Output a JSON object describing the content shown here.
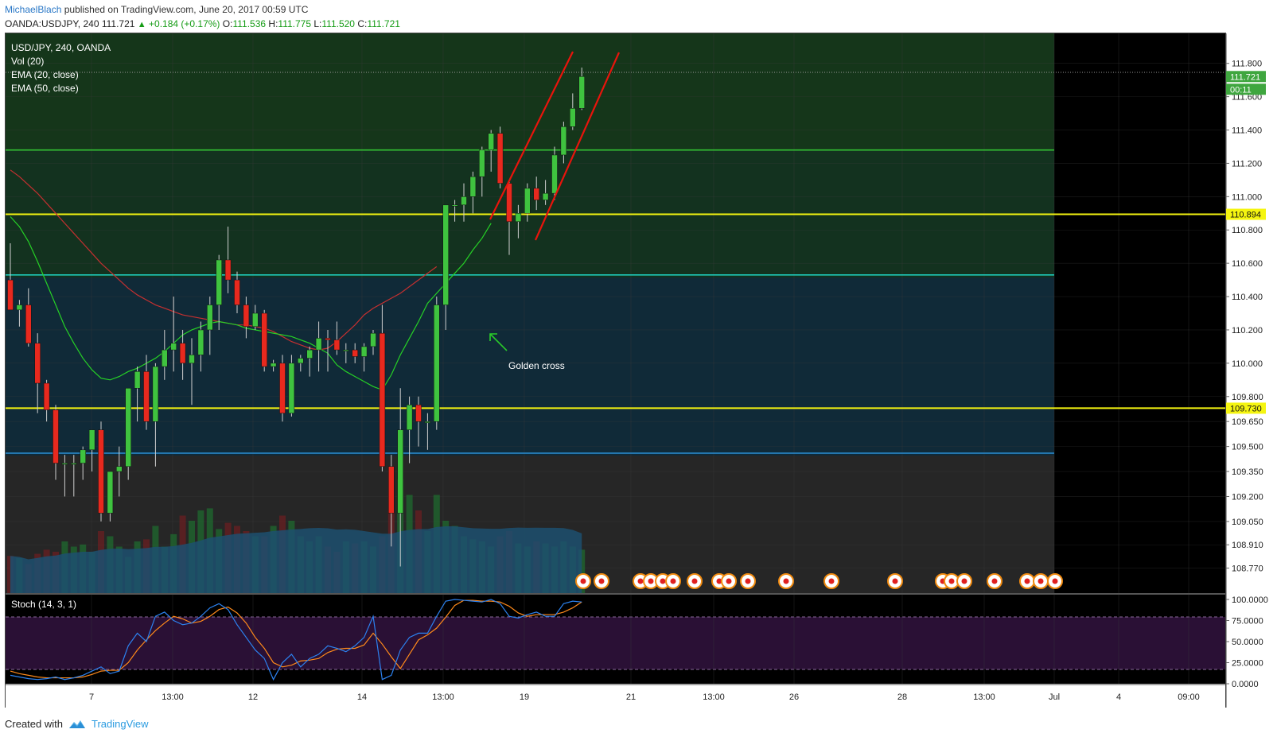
{
  "header": {
    "author": "MichaelBlach",
    "published_text": "published on TradingView.com, June 20, 2017 00:59 UTC",
    "symbol": "OANDA:USDJPY, 240",
    "last": "111.721",
    "change": "+0.184 (+0.17%)",
    "open_label": "O:",
    "open": "111.536",
    "high_label": "H:",
    "high": "111.775",
    "low_label": "L:",
    "low": "111.520",
    "close_label": "C:",
    "close": "111.721"
  },
  "legend": {
    "title": "USD/JPY, 240, OANDA",
    "vol": "Vol (20)",
    "ema20": "EMA (20, close)",
    "ema50": "EMA (50, close)"
  },
  "annotation": {
    "text": "Golden cross"
  },
  "footer": {
    "created_with": "Created with",
    "brand": "TradingView"
  },
  "colors": {
    "up": "#3fc33f",
    "down": "#e8291e",
    "ema20": "#26d126",
    "ema50": "#c53030",
    "resistance": "#34c234",
    "yellow_level": "#f5f510",
    "teal_level": "#1ec9b9",
    "blue_level": "#2a8fd6",
    "channel": "#e8140c",
    "stoch_k": "#2c82f0",
    "stoch_d": "#ff8a1a"
  },
  "chart_data": {
    "type": "candlestick",
    "title": "USD/JPY, 240, OANDA",
    "ylim": [
      108.62,
      111.98
    ],
    "y_ticks": [
      "111.800",
      "111.600",
      "111.400",
      "111.200",
      "111.000",
      "110.800",
      "110.600",
      "110.400",
      "110.200",
      "110.000",
      "109.800",
      "109.650",
      "109.500",
      "109.350",
      "109.200",
      "109.050",
      "108.910",
      "108.770"
    ],
    "x_ticks": [
      "7",
      "13:00",
      "12",
      "14",
      "13:00",
      "19",
      "21",
      "13:00",
      "26",
      "28",
      "13:00",
      "Jul",
      "4",
      "09:00"
    ],
    "price_labels": {
      "last": "111.721",
      "countdown": "00:11",
      "yellow_upper": "110.894",
      "yellow_lower": "109.730"
    },
    "horizontal_levels": {
      "green": 111.28,
      "yellow_upper": 110.894,
      "teal": 110.53,
      "yellow_lower": 109.73,
      "blue": 109.46
    },
    "candles": [
      [
        110.5,
        110.72,
        110.35,
        110.32
      ],
      [
        110.32,
        110.38,
        110.22,
        110.35
      ],
      [
        110.35,
        110.45,
        110.1,
        110.12
      ],
      [
        110.12,
        110.18,
        109.7,
        109.88
      ],
      [
        109.88,
        109.9,
        109.65,
        109.72
      ],
      [
        109.72,
        109.75,
        109.3,
        109.4
      ],
      [
        109.4,
        109.45,
        109.2,
        109.4
      ],
      [
        109.4,
        109.45,
        109.2,
        109.4
      ],
      [
        109.4,
        109.5,
        109.3,
        109.48
      ],
      [
        109.48,
        109.6,
        109.35,
        109.6
      ],
      [
        109.6,
        109.65,
        109.05,
        109.1
      ],
      [
        109.1,
        109.35,
        109.05,
        109.35
      ],
      [
        109.35,
        109.5,
        109.2,
        109.38
      ],
      [
        109.38,
        109.85,
        109.3,
        109.85
      ],
      [
        109.85,
        109.98,
        109.65,
        109.95
      ],
      [
        109.95,
        110.05,
        109.6,
        109.65
      ],
      [
        109.65,
        110.0,
        109.38,
        109.98
      ],
      [
        109.98,
        110.2,
        109.9,
        110.08
      ],
      [
        110.08,
        110.4,
        109.95,
        110.12
      ],
      [
        110.12,
        110.2,
        109.9,
        110.0
      ],
      [
        110.0,
        110.15,
        109.75,
        110.05
      ],
      [
        110.05,
        110.25,
        109.95,
        110.2
      ],
      [
        110.2,
        110.4,
        110.05,
        110.35
      ],
      [
        110.35,
        110.65,
        110.2,
        110.62
      ],
      [
        110.62,
        110.82,
        110.42,
        110.5
      ],
      [
        110.5,
        110.55,
        110.3,
        110.35
      ],
      [
        110.35,
        110.4,
        110.15,
        110.22
      ],
      [
        110.22,
        110.35,
        110.2,
        110.3
      ],
      [
        110.3,
        110.32,
        109.95,
        109.98
      ],
      [
        109.98,
        110.02,
        109.95,
        110.0
      ],
      [
        110.0,
        110.05,
        109.65,
        109.7
      ],
      [
        109.7,
        110.05,
        109.68,
        110.0
      ],
      [
        110.0,
        110.05,
        109.95,
        110.03
      ],
      [
        110.03,
        110.1,
        109.92,
        110.08
      ],
      [
        110.08,
        110.25,
        109.95,
        110.15
      ],
      [
        110.15,
        110.2,
        109.95,
        110.14
      ],
      [
        110.14,
        110.25,
        110.05,
        110.08
      ],
      [
        110.08,
        110.12,
        110.0,
        110.08
      ],
      [
        110.08,
        110.12,
        110.0,
        110.04
      ],
      [
        110.04,
        110.12,
        109.95,
        110.1
      ],
      [
        110.1,
        110.2,
        110.05,
        110.18
      ],
      [
        110.18,
        110.35,
        109.35,
        109.38
      ],
      [
        109.38,
        109.45,
        108.9,
        109.1
      ],
      [
        109.1,
        109.85,
        108.78,
        109.6
      ],
      [
        109.6,
        109.8,
        109.4,
        109.75
      ],
      [
        109.75,
        109.8,
        109.5,
        109.65
      ],
      [
        109.65,
        109.7,
        109.48,
        109.65
      ],
      [
        109.65,
        110.4,
        109.6,
        110.35
      ],
      [
        110.35,
        110.95,
        110.2,
        110.95
      ],
      [
        110.95,
        110.98,
        110.85,
        110.95
      ],
      [
        110.95,
        111.08,
        110.85,
        111.0
      ],
      [
        111.0,
        111.15,
        110.9,
        111.12
      ],
      [
        111.12,
        111.3,
        111.0,
        111.28
      ],
      [
        111.28,
        111.4,
        111.15,
        111.38
      ],
      [
        111.38,
        111.42,
        111.05,
        111.08
      ],
      [
        111.08,
        111.1,
        110.65,
        110.85
      ],
      [
        110.85,
        110.95,
        110.75,
        110.9
      ],
      [
        110.9,
        111.08,
        110.85,
        111.05
      ],
      [
        111.05,
        111.12,
        110.92,
        110.98
      ],
      [
        110.98,
        111.1,
        110.95,
        111.02
      ],
      [
        111.02,
        111.3,
        110.98,
        111.25
      ],
      [
        111.25,
        111.45,
        111.2,
        111.42
      ],
      [
        111.42,
        111.62,
        111.4,
        111.53
      ],
      [
        111.53,
        111.775,
        111.52,
        111.721
      ]
    ],
    "volume": [
      36,
      34,
      28,
      38,
      42,
      40,
      50,
      45,
      47,
      40,
      60,
      55,
      45,
      35,
      50,
      52,
      65,
      45,
      57,
      75,
      70,
      80,
      82,
      62,
      68,
      65,
      60,
      55,
      55,
      65,
      75,
      70,
      55,
      50,
      55,
      45,
      40,
      50,
      48,
      50,
      45,
      55,
      80,
      110,
      95,
      80,
      60,
      95,
      70,
      65,
      55,
      52,
      50,
      45,
      55,
      60,
      48,
      45,
      50,
      48,
      45,
      50,
      45,
      42
    ],
    "ema20": [
      110.88,
      110.82,
      110.73,
      110.61,
      110.48,
      110.35,
      110.22,
      110.12,
      110.03,
      109.96,
      109.91,
      109.9,
      109.92,
      109.95,
      109.97,
      110.0,
      110.03,
      110.07,
      110.12,
      110.17,
      110.2,
      110.22,
      110.24,
      110.25,
      110.24,
      110.23,
      110.21,
      110.2,
      110.19,
      110.18,
      110.17,
      110.16,
      110.14,
      110.12,
      110.09,
      110.06,
      109.99,
      109.95,
      109.92,
      109.89,
      109.86,
      109.84,
      109.93,
      110.05,
      110.15,
      110.25,
      110.36,
      110.42,
      110.48,
      110.54,
      110.6,
      110.68,
      110.75,
      110.84
    ],
    "ema20_start_index": 0,
    "ema50": [
      111.16,
      111.12,
      111.07,
      111.02,
      110.96,
      110.9,
      110.84,
      110.78,
      110.72,
      110.66,
      110.6,
      110.55,
      110.5,
      110.45,
      110.41,
      110.38,
      110.35,
      110.33,
      110.31,
      110.29,
      110.28,
      110.27,
      110.26,
      110.25,
      110.24,
      110.23,
      110.23,
      110.22,
      110.21,
      110.19,
      110.16,
      110.13,
      110.11,
      110.09,
      110.08,
      110.09,
      110.13,
      110.18,
      110.23,
      110.29,
      110.33,
      110.36,
      110.39,
      110.42,
      110.46,
      110.5,
      110.54,
      110.58
    ],
    "stochastic": {
      "name": "Stoch (14, 3, 1)",
      "ylim": [
        0,
        100
      ],
      "y_ticks": [
        "100.0000",
        "75.0000",
        "50.0000",
        "25.0000",
        "0.0000"
      ],
      "bands": [
        80,
        20
      ],
      "k": [
        10,
        8,
        6,
        5,
        6,
        8,
        5,
        7,
        10,
        15,
        20,
        12,
        15,
        45,
        60,
        50,
        80,
        85,
        75,
        70,
        72,
        80,
        90,
        95,
        88,
        70,
        55,
        40,
        30,
        5,
        25,
        35,
        20,
        30,
        35,
        45,
        42,
        38,
        45,
        55,
        80,
        5,
        10,
        40,
        55,
        60,
        60,
        80,
        98,
        100,
        99,
        98,
        97,
        100,
        95,
        80,
        78,
        82,
        85,
        80,
        80,
        95,
        98,
        97
      ],
      "d": [
        15,
        12,
        10,
        8,
        7,
        7,
        7,
        7,
        8,
        11,
        15,
        16,
        16,
        25,
        40,
        52,
        63,
        72,
        80,
        77,
        72,
        74,
        80,
        88,
        91,
        84,
        72,
        55,
        42,
        25,
        20,
        22,
        27,
        28,
        30,
        37,
        41,
        42,
        42,
        46,
        60,
        47,
        32,
        18,
        35,
        52,
        58,
        66,
        79,
        93,
        99,
        99,
        98,
        98,
        97,
        92,
        84,
        80,
        82,
        82,
        82,
        85,
        90,
        97
      ]
    }
  }
}
